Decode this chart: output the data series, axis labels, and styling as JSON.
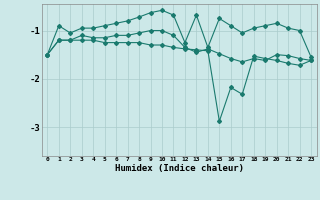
{
  "xlabel": "Humidex (Indice chaleur)",
  "bg_color": "#cce8e8",
  "line_color": "#1a7a6e",
  "grid_color": "#aacccc",
  "xlim": [
    -0.5,
    23.5
  ],
  "ylim": [
    -3.6,
    -0.45
  ],
  "yticks": [
    -3,
    -2,
    -1
  ],
  "xticks": [
    0,
    1,
    2,
    3,
    4,
    5,
    6,
    7,
    8,
    9,
    10,
    11,
    12,
    13,
    14,
    15,
    16,
    17,
    18,
    19,
    20,
    21,
    22,
    23
  ],
  "line1_x": [
    0,
    1,
    2,
    3,
    4,
    5,
    6,
    7,
    8,
    9,
    10,
    11,
    12,
    13,
    14,
    15,
    16,
    17,
    18,
    19,
    20,
    21,
    22,
    23
  ],
  "line1_y": [
    -1.5,
    -0.9,
    -1.05,
    -0.95,
    -0.95,
    -0.9,
    -0.85,
    -0.8,
    -0.72,
    -0.63,
    -0.58,
    -0.68,
    -1.25,
    -0.68,
    -1.35,
    -0.75,
    -0.9,
    -1.05,
    -0.95,
    -0.9,
    -0.85,
    -0.95,
    -1.0,
    -1.55
  ],
  "line2_x": [
    0,
    1,
    2,
    3,
    4,
    5,
    6,
    7,
    8,
    9,
    10,
    11,
    12,
    13,
    14,
    15,
    16,
    17,
    18,
    19,
    20,
    21,
    22,
    23
  ],
  "line2_y": [
    -1.5,
    -1.2,
    -1.2,
    -1.1,
    -1.15,
    -1.15,
    -1.1,
    -1.1,
    -1.05,
    -1.0,
    -1.0,
    -1.1,
    -1.35,
    -1.45,
    -1.38,
    -1.48,
    -1.58,
    -1.65,
    -1.58,
    -1.62,
    -1.5,
    -1.52,
    -1.58,
    -1.62
  ],
  "line3_x": [
    0,
    1,
    2,
    3,
    4,
    5,
    6,
    7,
    8,
    9,
    10,
    11,
    12,
    13,
    14,
    15,
    16,
    17,
    18,
    19,
    20,
    21,
    22,
    23
  ],
  "line3_y": [
    -1.5,
    -1.2,
    -1.2,
    -1.2,
    -1.2,
    -1.25,
    -1.25,
    -1.25,
    -1.25,
    -1.3,
    -1.3,
    -1.35,
    -1.38,
    -1.4,
    -1.42,
    -2.88,
    -2.18,
    -2.32,
    -1.53,
    -1.58,
    -1.62,
    -1.68,
    -1.72,
    -1.62
  ]
}
